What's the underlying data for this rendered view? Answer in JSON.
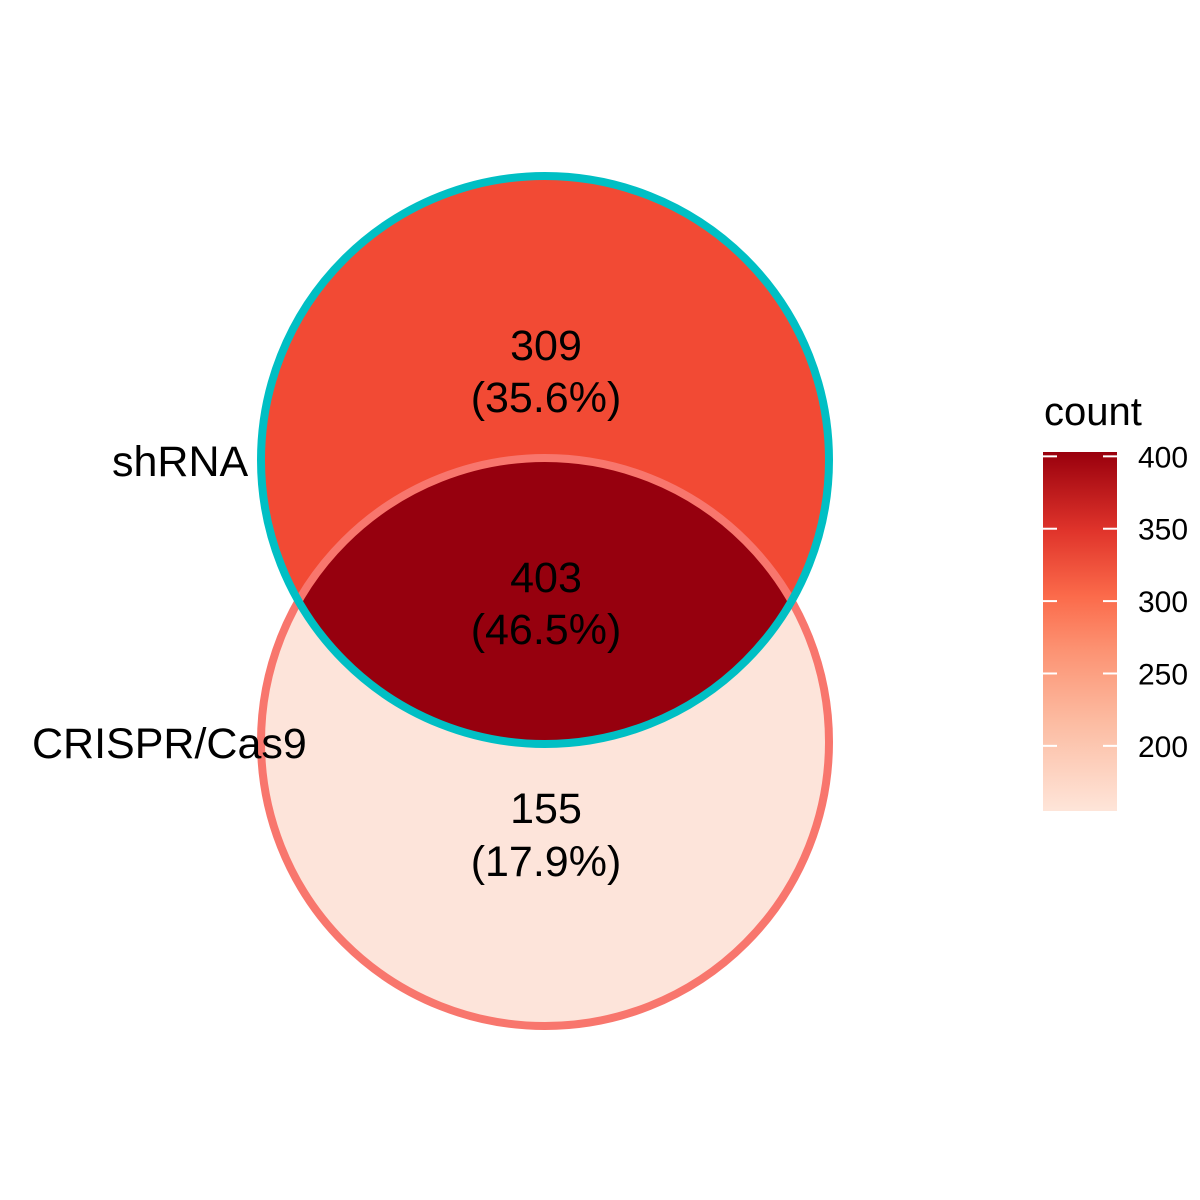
{
  "chart_data": {
    "type": "venn",
    "sets": [
      {
        "name": "shRNA",
        "border_color": "#00BFC4"
      },
      {
        "name": "CRISPR/Cas9",
        "border_color": "#F8766D"
      }
    ],
    "regions": [
      {
        "id": "shrna_only",
        "count": "309",
        "percent": "(35.6%)",
        "value": 309,
        "fill": "#F24A34"
      },
      {
        "id": "both",
        "count": "403",
        "percent": "(46.5%)",
        "value": 403,
        "fill": "#96000E"
      },
      {
        "id": "crispr_only",
        "count": "155",
        "percent": "(17.9%)",
        "value": 155,
        "fill": "#FDE4DA"
      }
    ],
    "legend": {
      "title": "count",
      "placement": "right",
      "range": [
        155,
        403
      ],
      "ticks": [
        "400",
        "350",
        "300",
        "250",
        "200"
      ],
      "tick_values": [
        400,
        350,
        300,
        250,
        200
      ],
      "gradient_low": "#FEE5D9",
      "gradient_high": "#99000D"
    }
  }
}
